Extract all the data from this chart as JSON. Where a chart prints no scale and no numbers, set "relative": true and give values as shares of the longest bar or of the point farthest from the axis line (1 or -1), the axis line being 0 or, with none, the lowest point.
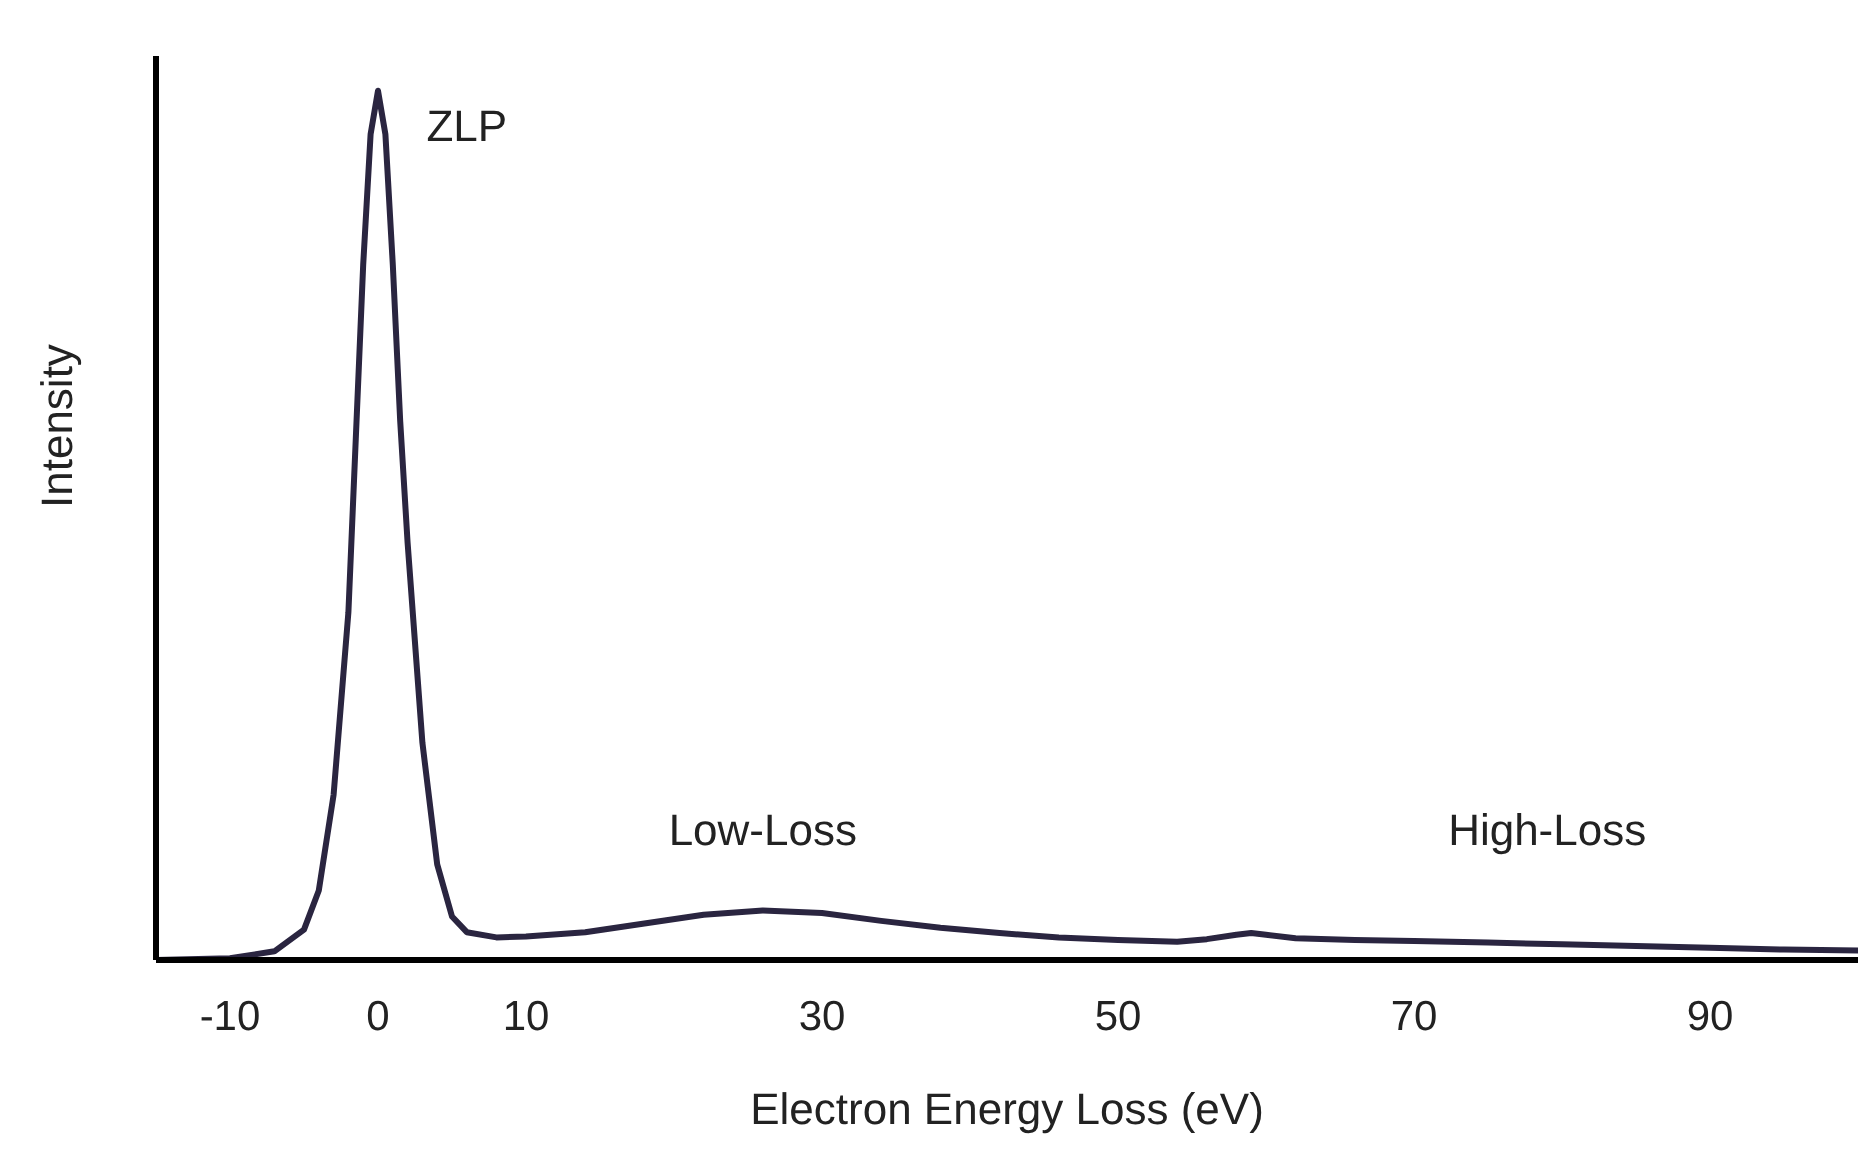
{
  "chart_data": {
    "type": "line",
    "relative": true,
    "xlabel": "Electron Energy Loss (eV)",
    "ylabel": "Intensity",
    "xlim": [
      -15,
      100
    ],
    "xticks": [
      -10,
      0,
      10,
      30,
      50,
      70,
      90
    ],
    "series": [
      {
        "color": "#2a2540",
        "x": [
          -15,
          -10,
          -7,
          -5,
          -4,
          -3,
          -2,
          -1.5,
          -1,
          -0.5,
          0,
          0.5,
          1,
          1.5,
          2,
          3,
          4,
          5,
          6,
          8,
          10,
          14,
          18,
          22,
          26,
          30,
          34,
          38,
          42,
          46,
          50,
          54,
          56,
          58,
          59,
          60,
          62,
          66,
          70,
          75,
          80,
          85,
          90,
          95,
          100
        ],
        "values": [
          0,
          0.002,
          0.01,
          0.035,
          0.08,
          0.19,
          0.4,
          0.6,
          0.8,
          0.95,
          1,
          0.95,
          0.8,
          0.62,
          0.48,
          0.25,
          0.11,
          0.05,
          0.032,
          0.026,
          0.027,
          0.032,
          0.042,
          0.052,
          0.057,
          0.054,
          0.045,
          0.037,
          0.031,
          0.026,
          0.023,
          0.021,
          0.024,
          0.029,
          0.031,
          0.029,
          0.025,
          0.023,
          0.022,
          0.02,
          0.018,
          0.016,
          0.014,
          0.012,
          0.011
        ]
      }
    ],
    "annotations": [
      "ZLP",
      "Low-Loss",
      "High-Loss"
    ],
    "grid": false,
    "legend": false,
    "marker": "none",
    "line_style": "solid"
  }
}
